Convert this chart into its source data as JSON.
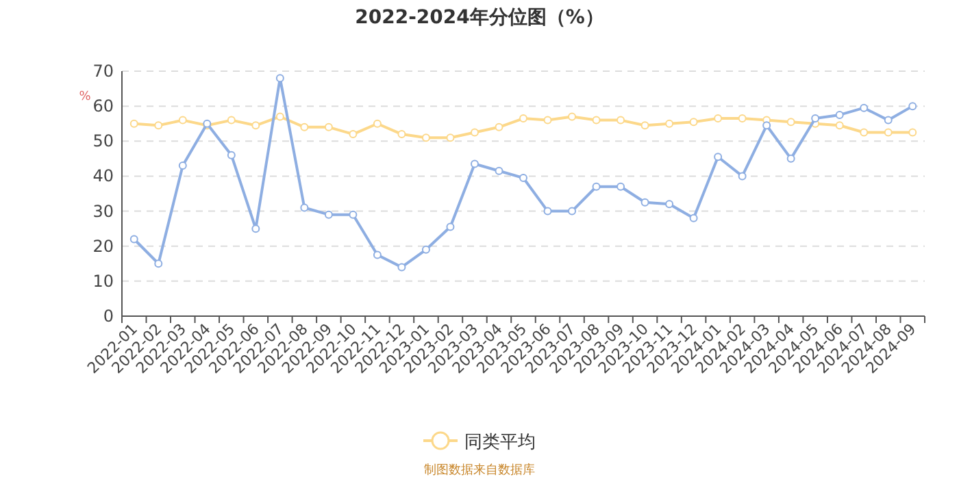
{
  "chart_data": {
    "type": "line",
    "title": "2022-2024年分位图（%）",
    "ylabel": "%",
    "categories": [
      "2022-01",
      "2022-02",
      "2022-03",
      "2022-04",
      "2022-05",
      "2022-06",
      "2022-07",
      "2022-08",
      "2022-09",
      "2022-10",
      "2022-11",
      "2022-12",
      "2023-01",
      "2023-02",
      "2023-03",
      "2023-04",
      "2023-05",
      "2023-06",
      "2023-07",
      "2023-08",
      "2023-09",
      "2023-10",
      "2023-11",
      "2023-12",
      "2024-01",
      "2024-02",
      "2024-03",
      "2024-04",
      "2024-05",
      "2024-06",
      "2024-07",
      "2024-08",
      "2024-09"
    ],
    "series": [
      {
        "color": "#8eaee2",
        "values": [
          22,
          15,
          43,
          55,
          46,
          25,
          68,
          31,
          29,
          29,
          17.5,
          14,
          19,
          25.5,
          43.5,
          41.5,
          39.5,
          30,
          30,
          37,
          37,
          32.5,
          32,
          28,
          45.5,
          40,
          54.5,
          45,
          56.5,
          57.5,
          59.5,
          56,
          60
        ]
      },
      {
        "name": "同类平均",
        "color": "#fcd88a",
        "values": [
          55,
          54.5,
          56,
          54.5,
          56,
          54.5,
          57,
          54,
          54,
          52,
          55,
          52,
          51,
          51,
          52.5,
          54,
          56.5,
          56,
          57,
          56,
          56,
          54.5,
          55,
          55.5,
          56.5,
          56.5,
          56,
          55.5,
          55,
          54.5,
          52.5,
          52.5,
          52.5
        ]
      }
    ],
    "ylim": [
      0,
      70
    ],
    "yticks": [
      0,
      10,
      20,
      30,
      40,
      50,
      60,
      70
    ],
    "grid": "y",
    "legend": "bottom",
    "marker": "circle",
    "line_style": "solid",
    "annotations": [
      "制图数据来自数据库"
    ]
  }
}
